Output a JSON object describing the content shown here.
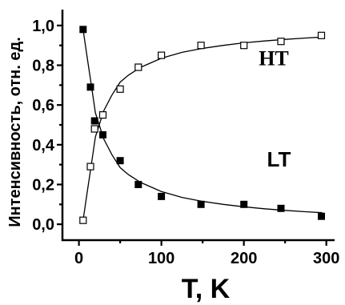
{
  "chart_data": {
    "type": "scatter",
    "xlabel": "T, K",
    "ylabel": "Интенсивность, отн. ед.",
    "xlim": [
      -20,
      310
    ],
    "ylim": [
      -0.08,
      1.08
    ],
    "xticks": [
      0,
      100,
      200,
      300
    ],
    "xtick_labels": [
      "0",
      "100",
      "200",
      "300"
    ],
    "yticks": [
      0.0,
      0.2,
      0.4,
      0.6,
      0.8,
      1.0
    ],
    "ytick_labels": [
      "0,0",
      "0,2",
      "0,4",
      "0,6",
      "0,8",
      "1,0"
    ],
    "grid": false,
    "series": [
      {
        "name": "HT",
        "marker": "open-square",
        "x": [
          5,
          14,
          19,
          29,
          50,
          72,
          100,
          148,
          200,
          245,
          294
        ],
        "y": [
          0.02,
          0.29,
          0.48,
          0.55,
          0.68,
          0.79,
          0.85,
          0.9,
          0.9,
          0.92,
          0.95
        ],
        "fit_x": [
          5,
          10,
          15,
          20,
          30,
          40,
          50,
          60,
          75,
          100,
          125,
          150,
          175,
          200,
          225,
          250,
          275,
          295
        ],
        "fit_y": [
          0.02,
          0.16,
          0.3,
          0.44,
          0.57,
          0.65,
          0.715,
          0.75,
          0.79,
          0.835,
          0.865,
          0.885,
          0.9,
          0.913,
          0.922,
          0.93,
          0.937,
          0.942
        ]
      },
      {
        "name": "LT",
        "marker": "filled-square",
        "x": [
          5,
          14,
          19,
          29,
          50,
          72,
          100,
          148,
          200,
          245,
          294
        ],
        "y": [
          0.98,
          0.69,
          0.52,
          0.45,
          0.32,
          0.2,
          0.14,
          0.1,
          0.1,
          0.08,
          0.04
        ],
        "fit_x": [
          5,
          10,
          15,
          20,
          30,
          40,
          50,
          60,
          75,
          100,
          125,
          150,
          175,
          200,
          225,
          250,
          275,
          295
        ],
        "fit_y": [
          0.98,
          0.84,
          0.7,
          0.56,
          0.43,
          0.35,
          0.285,
          0.25,
          0.21,
          0.165,
          0.135,
          0.115,
          0.1,
          0.088,
          0.078,
          0.07,
          0.063,
          0.058
        ]
      }
    ],
    "annotations": [
      {
        "text": "HT",
        "x": 218,
        "y": 0.8
      },
      {
        "text": "LT",
        "x": 228,
        "y": 0.29
      }
    ]
  }
}
